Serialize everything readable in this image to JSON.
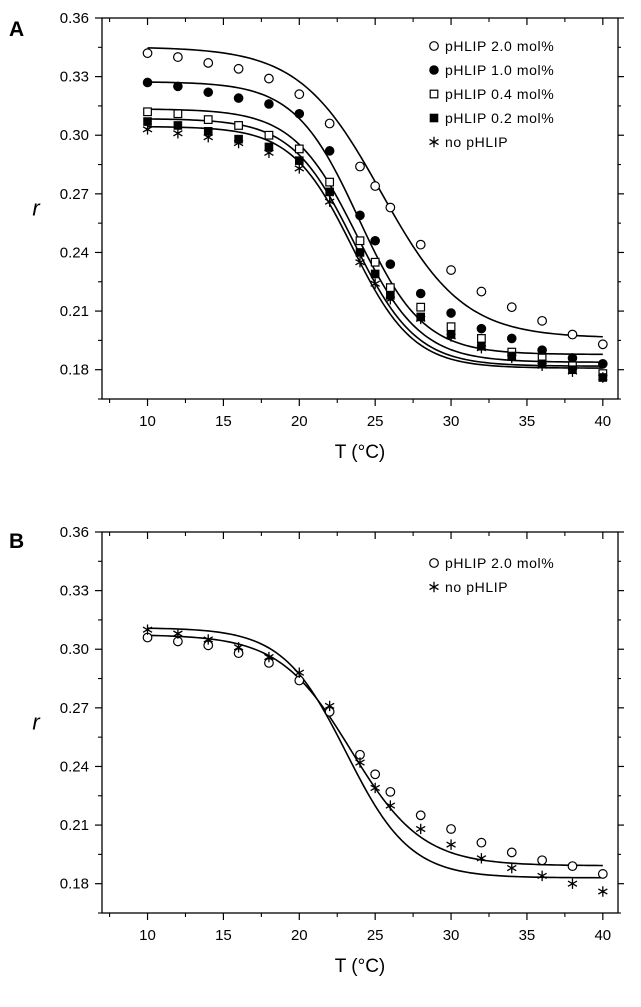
{
  "chart_data": [
    {
      "type": "scatter",
      "panel_label": "A",
      "xlabel": "T (°C)",
      "ylabel": "r",
      "xlim": [
        7,
        41
      ],
      "ylim": [
        0.165,
        0.36
      ],
      "xticks": [
        10,
        15,
        20,
        25,
        30,
        35,
        40
      ],
      "yticks": [
        0.18,
        0.21,
        0.24,
        0.27,
        0.3,
        0.33,
        0.36
      ],
      "legend_position": "top-right",
      "series": [
        {
          "name": "pHLIP 2.0 mol%",
          "marker": "open-circle",
          "x": [
            10,
            12,
            14,
            16,
            18,
            20,
            22,
            24,
            25,
            26,
            28,
            30,
            32,
            34,
            36,
            38,
            40
          ],
          "y": [
            0.342,
            0.34,
            0.337,
            0.334,
            0.329,
            0.321,
            0.306,
            0.284,
            0.274,
            0.263,
            0.244,
            0.231,
            0.22,
            0.212,
            0.205,
            0.198,
            0.193
          ],
          "fit": {
            "top": 0.3452,
            "bottom": 0.1962,
            "x0": 25.4,
            "dx": 2.7
          }
        },
        {
          "name": "pHLIP 1.0 mol%",
          "marker": "filled-circle",
          "x": [
            10,
            12,
            14,
            16,
            18,
            20,
            22,
            24,
            25,
            26,
            28,
            30,
            32,
            34,
            36,
            38,
            40
          ],
          "y": [
            0.327,
            0.325,
            0.322,
            0.319,
            0.316,
            0.311,
            0.292,
            0.259,
            0.246,
            0.234,
            0.219,
            0.209,
            0.201,
            0.196,
            0.19,
            0.186,
            0.183
          ],
          "fit": {
            "top": 0.3274,
            "bottom": 0.1878,
            "x0": 23.9,
            "dx": 2.1
          }
        },
        {
          "name": "pHLIP 0.4 mol%",
          "marker": "open-square",
          "x": [
            10,
            12,
            14,
            16,
            18,
            20,
            22,
            24,
            25,
            26,
            28,
            30,
            32,
            34,
            36,
            38,
            40
          ],
          "y": [
            0.312,
            0.311,
            0.308,
            0.305,
            0.3,
            0.293,
            0.276,
            0.246,
            0.235,
            0.222,
            0.212,
            0.202,
            0.196,
            0.189,
            0.186,
            0.182,
            0.178
          ],
          "fit": {
            "top": 0.3135,
            "bottom": 0.1838,
            "x0": 23.8,
            "dx": 2.1
          }
        },
        {
          "name": "pHLIP 0.2 mol%",
          "marker": "filled-square",
          "x": [
            10,
            12,
            14,
            16,
            18,
            20,
            22,
            24,
            25,
            26,
            28,
            30,
            32,
            34,
            36,
            38,
            40
          ],
          "y": [
            0.307,
            0.305,
            0.302,
            0.298,
            0.294,
            0.287,
            0.271,
            0.24,
            0.229,
            0.218,
            0.207,
            0.198,
            0.192,
            0.187,
            0.183,
            0.18,
            0.176
          ],
          "fit": {
            "top": 0.3085,
            "bottom": 0.1818,
            "x0": 23.6,
            "dx": 2.05
          }
        },
        {
          "name": "no pHLIP",
          "marker": "asterisk",
          "x": [
            10,
            12,
            14,
            16,
            18,
            20,
            22,
            24,
            25,
            26,
            28,
            30,
            32,
            34,
            36,
            38,
            40
          ],
          "y": [
            0.303,
            0.301,
            0.299,
            0.296,
            0.291,
            0.283,
            0.266,
            0.235,
            0.224,
            0.216,
            0.206,
            0.197,
            0.191,
            0.186,
            0.182,
            0.179,
            0.176
          ],
          "fit": {
            "top": 0.3045,
            "bottom": 0.1808,
            "x0": 23.5,
            "dx": 2.0
          }
        }
      ]
    },
    {
      "type": "scatter",
      "panel_label": "B",
      "xlabel": "T (°C)",
      "ylabel": "r",
      "xlim": [
        7,
        41
      ],
      "ylim": [
        0.165,
        0.36
      ],
      "xticks": [
        10,
        15,
        20,
        25,
        30,
        35,
        40
      ],
      "yticks": [
        0.18,
        0.21,
        0.24,
        0.27,
        0.3,
        0.33,
        0.36
      ],
      "legend_position": "top-right",
      "series": [
        {
          "name": "pHLIP 2.0 mol%",
          "marker": "open-circle",
          "x": [
            10,
            12,
            14,
            16,
            18,
            20,
            22,
            24,
            25,
            26,
            28,
            30,
            32,
            34,
            36,
            38,
            40
          ],
          "y": [
            0.306,
            0.304,
            0.302,
            0.298,
            0.293,
            0.284,
            0.268,
            0.246,
            0.236,
            0.227,
            0.215,
            0.208,
            0.201,
            0.196,
            0.192,
            0.189,
            0.185
          ],
          "fit": {
            "top": 0.3075,
            "bottom": 0.1892,
            "x0": 23.4,
            "dx": 2.35
          }
        },
        {
          "name": "no pHLIP",
          "marker": "asterisk",
          "x": [
            10,
            12,
            14,
            16,
            18,
            20,
            22,
            24,
            25,
            26,
            28,
            30,
            32,
            34,
            36,
            38,
            40
          ],
          "y": [
            0.31,
            0.308,
            0.305,
            0.301,
            0.296,
            0.288,
            0.271,
            0.242,
            0.229,
            0.22,
            0.208,
            0.2,
            0.193,
            0.188,
            0.184,
            0.18,
            0.176
          ],
          "fit": {
            "top": 0.311,
            "bottom": 0.183,
            "x0": 23.1,
            "dx": 2.1
          }
        }
      ]
    }
  ]
}
